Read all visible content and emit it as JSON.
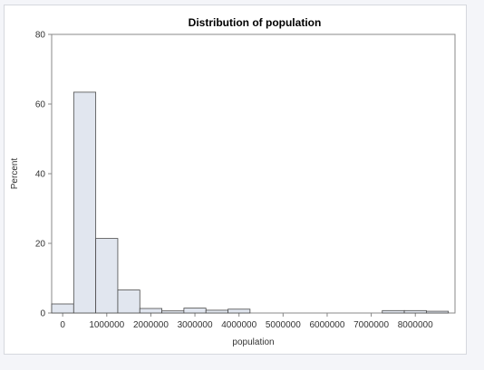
{
  "chart_data": {
    "type": "bar",
    "title": "Distribution of population",
    "xlabel": "population",
    "ylabel": "Percent",
    "ylim": [
      0,
      80
    ],
    "xlim": [
      -250000,
      8900000
    ],
    "bin_width": 500000,
    "y_ticks": [
      0,
      20,
      40,
      60,
      80
    ],
    "x_ticks": [
      0,
      1000000,
      2000000,
      3000000,
      4000000,
      5000000,
      6000000,
      7000000,
      8000000
    ],
    "bins": [
      {
        "x": 0,
        "value": 2.6
      },
      {
        "x": 500000,
        "value": 63.4
      },
      {
        "x": 1000000,
        "value": 21.4
      },
      {
        "x": 1500000,
        "value": 6.6
      },
      {
        "x": 2000000,
        "value": 1.3
      },
      {
        "x": 2500000,
        "value": 0.6
      },
      {
        "x": 3000000,
        "value": 1.4
      },
      {
        "x": 3500000,
        "value": 0.8
      },
      {
        "x": 4000000,
        "value": 1.1
      },
      {
        "x": 4500000,
        "value": 0
      },
      {
        "x": 5000000,
        "value": 0
      },
      {
        "x": 5500000,
        "value": 0
      },
      {
        "x": 6000000,
        "value": 0
      },
      {
        "x": 6500000,
        "value": 0
      },
      {
        "x": 7000000,
        "value": 0
      },
      {
        "x": 7500000,
        "value": 0.7
      },
      {
        "x": 8000000,
        "value": 0.7
      },
      {
        "x": 8500000,
        "value": 0.5
      }
    ],
    "colors": {
      "bar_fill": "#e1e6ef",
      "bar_stroke": "#4a4a4a",
      "axis": "#888888"
    },
    "grid": false
  }
}
